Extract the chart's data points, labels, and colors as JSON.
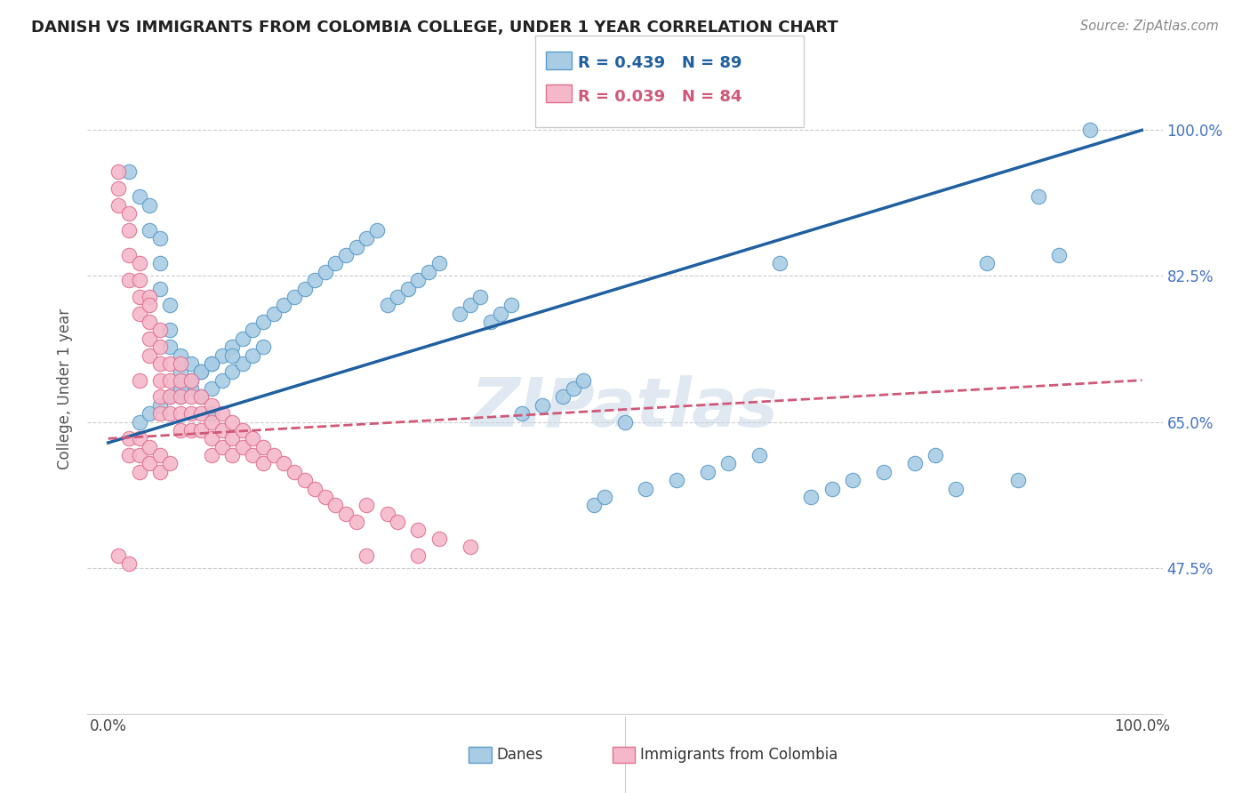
{
  "title": "DANISH VS IMMIGRANTS FROM COLOMBIA COLLEGE, UNDER 1 YEAR CORRELATION CHART",
  "source": "Source: ZipAtlas.com",
  "ylabel_label": "College, Under 1 year",
  "legend_danes": "Danes",
  "legend_colombia": "Immigrants from Colombia",
  "danes_R": "R = 0.439",
  "danes_N": "N = 89",
  "colombia_R": "R = 0.039",
  "colombia_N": "N = 84",
  "danes_color": "#a8cce4",
  "colombia_color": "#f4b8ca",
  "danes_edge_color": "#5b9bc8",
  "colombia_edge_color": "#e07090",
  "danes_line_color": "#2060a0",
  "colombia_line_color": "#d05878",
  "watermark": "ZIPatlas",
  "watermark_color": "#c8d8e8",
  "ytick_positions": [
    0.475,
    0.65,
    0.825,
    1.0
  ],
  "ytick_labels": [
    "47.5%",
    "65.0%",
    "82.5%",
    "100.0%"
  ],
  "danes_line_x": [
    0.0,
    1.0
  ],
  "danes_line_y": [
    0.625,
    1.0
  ],
  "colombia_line_x": [
    0.0,
    1.0
  ],
  "colombia_line_y": [
    0.63,
    0.7
  ],
  "danes_x": [
    0.02,
    0.03,
    0.04,
    0.04,
    0.05,
    0.05,
    0.05,
    0.06,
    0.06,
    0.06,
    0.07,
    0.07,
    0.07,
    0.07,
    0.08,
    0.08,
    0.09,
    0.09,
    0.1,
    0.1,
    0.1,
    0.11,
    0.11,
    0.12,
    0.12,
    0.13,
    0.13,
    0.14,
    0.14,
    0.15,
    0.15,
    0.16,
    0.17,
    0.18,
    0.19,
    0.2,
    0.21,
    0.22,
    0.23,
    0.24,
    0.25,
    0.26,
    0.27,
    0.28,
    0.29,
    0.3,
    0.31,
    0.32,
    0.34,
    0.35,
    0.36,
    0.37,
    0.38,
    0.39,
    0.4,
    0.42,
    0.44,
    0.45,
    0.46,
    0.47,
    0.48,
    0.5,
    0.52,
    0.55,
    0.58,
    0.6,
    0.63,
    0.65,
    0.68,
    0.7,
    0.72,
    0.75,
    0.78,
    0.8,
    0.82,
    0.85,
    0.88,
    0.9,
    0.92,
    0.95,
    0.03,
    0.04,
    0.05,
    0.06,
    0.07,
    0.08,
    0.09,
    0.1,
    0.12
  ],
  "danes_y": [
    0.95,
    0.92,
    0.91,
    0.88,
    0.87,
    0.84,
    0.81,
    0.79,
    0.76,
    0.74,
    0.73,
    0.71,
    0.69,
    0.68,
    0.72,
    0.69,
    0.71,
    0.68,
    0.72,
    0.69,
    0.66,
    0.73,
    0.7,
    0.74,
    0.71,
    0.75,
    0.72,
    0.76,
    0.73,
    0.77,
    0.74,
    0.78,
    0.79,
    0.8,
    0.81,
    0.82,
    0.83,
    0.84,
    0.85,
    0.86,
    0.87,
    0.88,
    0.79,
    0.8,
    0.81,
    0.82,
    0.83,
    0.84,
    0.78,
    0.79,
    0.8,
    0.77,
    0.78,
    0.79,
    0.66,
    0.67,
    0.68,
    0.69,
    0.7,
    0.55,
    0.56,
    0.65,
    0.57,
    0.58,
    0.59,
    0.6,
    0.61,
    0.84,
    0.56,
    0.57,
    0.58,
    0.59,
    0.6,
    0.61,
    0.57,
    0.84,
    0.58,
    0.92,
    0.85,
    1.0,
    0.65,
    0.66,
    0.67,
    0.68,
    0.69,
    0.7,
    0.71,
    0.72,
    0.73
  ],
  "colombia_x": [
    0.01,
    0.01,
    0.01,
    0.02,
    0.02,
    0.02,
    0.02,
    0.03,
    0.03,
    0.03,
    0.03,
    0.03,
    0.04,
    0.04,
    0.04,
    0.04,
    0.04,
    0.05,
    0.05,
    0.05,
    0.05,
    0.05,
    0.05,
    0.06,
    0.06,
    0.06,
    0.06,
    0.07,
    0.07,
    0.07,
    0.07,
    0.07,
    0.08,
    0.08,
    0.08,
    0.08,
    0.09,
    0.09,
    0.09,
    0.1,
    0.1,
    0.1,
    0.1,
    0.11,
    0.11,
    0.11,
    0.12,
    0.12,
    0.12,
    0.13,
    0.13,
    0.14,
    0.14,
    0.15,
    0.15,
    0.16,
    0.17,
    0.18,
    0.19,
    0.2,
    0.21,
    0.22,
    0.23,
    0.24,
    0.25,
    0.27,
    0.28,
    0.3,
    0.32,
    0.35,
    0.02,
    0.02,
    0.03,
    0.03,
    0.03,
    0.04,
    0.04,
    0.05,
    0.05,
    0.06,
    0.01,
    0.02,
    0.25,
    0.3
  ],
  "colombia_y": [
    0.95,
    0.93,
    0.91,
    0.9,
    0.88,
    0.85,
    0.82,
    0.84,
    0.82,
    0.8,
    0.78,
    0.7,
    0.8,
    0.79,
    0.77,
    0.75,
    0.73,
    0.76,
    0.74,
    0.72,
    0.7,
    0.68,
    0.66,
    0.72,
    0.7,
    0.68,
    0.66,
    0.72,
    0.7,
    0.68,
    0.66,
    0.64,
    0.7,
    0.68,
    0.66,
    0.64,
    0.68,
    0.66,
    0.64,
    0.67,
    0.65,
    0.63,
    0.61,
    0.66,
    0.64,
    0.62,
    0.65,
    0.63,
    0.61,
    0.64,
    0.62,
    0.63,
    0.61,
    0.62,
    0.6,
    0.61,
    0.6,
    0.59,
    0.58,
    0.57,
    0.56,
    0.55,
    0.54,
    0.53,
    0.55,
    0.54,
    0.53,
    0.52,
    0.51,
    0.5,
    0.63,
    0.61,
    0.63,
    0.61,
    0.59,
    0.62,
    0.6,
    0.61,
    0.59,
    0.6,
    0.49,
    0.48,
    0.49,
    0.49
  ],
  "xlim": [
    -0.02,
    1.02
  ],
  "ylim": [
    0.3,
    1.08
  ]
}
